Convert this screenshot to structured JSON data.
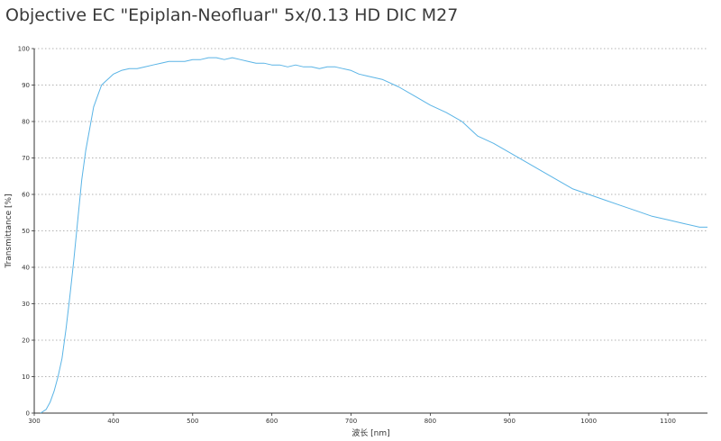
{
  "chart_data": {
    "type": "line",
    "title": "Objective EC \"Epiplan-Neofluar\" 5x/0.13 HD DIC M27",
    "xlabel": "波长 [nm]",
    "ylabel": "Transmittance [%]",
    "xlim": [
      300,
      1150
    ],
    "ylim": [
      0,
      100
    ],
    "xticks": [
      300,
      400,
      500,
      600,
      700,
      800,
      900,
      1000,
      1100
    ],
    "yticks": [
      0,
      10,
      20,
      30,
      40,
      50,
      60,
      70,
      80,
      90,
      100
    ],
    "grid": "horizontal dotted",
    "series": [
      {
        "color": "#5ab4e6",
        "x": [
          308,
          315,
          320,
          325,
          330,
          335,
          340,
          345,
          350,
          355,
          360,
          365,
          370,
          375,
          380,
          385,
          390,
          395,
          400,
          410,
          420,
          430,
          440,
          450,
          460,
          470,
          480,
          490,
          500,
          510,
          520,
          530,
          540,
          550,
          560,
          570,
          580,
          590,
          600,
          610,
          620,
          630,
          640,
          650,
          660,
          670,
          680,
          690,
          700,
          710,
          720,
          740,
          760,
          780,
          800,
          820,
          840,
          860,
          880,
          900,
          920,
          940,
          960,
          980,
          1000,
          1020,
          1040,
          1060,
          1080,
          1100,
          1120,
          1140,
          1150
        ],
        "y": [
          0,
          1,
          3,
          6,
          10,
          15,
          23,
          32,
          42,
          53,
          64,
          72,
          78,
          84,
          87,
          90,
          91,
          92,
          93,
          94,
          94.5,
          94.5,
          95,
          95.5,
          96,
          96.5,
          96.5,
          96.5,
          97,
          97,
          97.5,
          97.5,
          97,
          97.5,
          97,
          96.5,
          96,
          96,
          95.5,
          95.5,
          95,
          95.5,
          95,
          95,
          94.5,
          95,
          95,
          94.5,
          94,
          93,
          92.5,
          91.5,
          89.5,
          87,
          84.5,
          82.5,
          80,
          76,
          74,
          71.5,
          69,
          66.5,
          64,
          61.5,
          60,
          58.5,
          57,
          55.5,
          54,
          53,
          52,
          51,
          51
        ]
      }
    ]
  }
}
